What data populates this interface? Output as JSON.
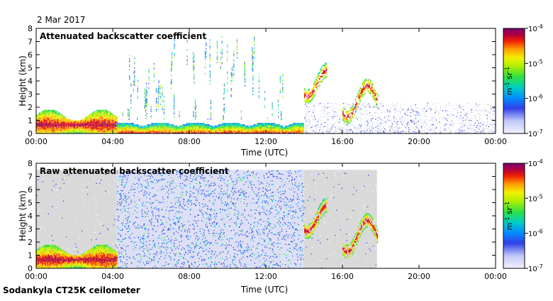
{
  "header": {
    "date": "2 Mar 2017"
  },
  "footer": {
    "instrument": "Sodankyla CT25K ceilometer"
  },
  "colors": {
    "background_noise": "#d9d9d9",
    "colormap": [
      "#f2f2ff",
      "#c0c8f8",
      "#3040e8",
      "#0090ff",
      "#00d0c0",
      "#30e040",
      "#b0f000",
      "#f0f000",
      "#ffa000",
      "#f02000",
      "#b00040",
      "#7a0070"
    ]
  },
  "chart_data": [
    {
      "type": "heatmap",
      "title": "Attenuated backscatter coefficient",
      "xlabel": "Time (UTC)",
      "ylabel": "Height (km)",
      "x_ticks": [
        "00:00",
        "04:00",
        "08:00",
        "12:00",
        "16:00",
        "20:00",
        "00:00"
      ],
      "x_tick_hours": [
        0,
        4,
        8,
        12,
        16,
        20,
        24
      ],
      "xlim": [
        0,
        24
      ],
      "y_ticks": [
        "0",
        "1",
        "2",
        "3",
        "4",
        "5",
        "6",
        "7",
        "8"
      ],
      "ylim": [
        0,
        8
      ],
      "colorbar": {
        "label": "m-1 sr-1",
        "scale": "log",
        "range": [
          1e-07,
          0.0001
        ],
        "tick_labels": [
          "10-7",
          "10-6",
          "10-5",
          "10-4"
        ]
      },
      "features": [
        {
          "kind": "boundary_layer",
          "hours": [
            0,
            4.2
          ],
          "top_km": 1.8,
          "peak_km": 0.6
        },
        {
          "kind": "surface_layer",
          "hours": [
            4.2,
            14
          ],
          "top_km": 0.8
        },
        {
          "kind": "precipitation_streaks",
          "hours": [
            4.5,
            13
          ],
          "height_km": [
            1,
            7.5
          ]
        },
        {
          "kind": "cloud",
          "hours": [
            14,
            15.2
          ],
          "height_km": [
            3,
            5.5
          ]
        },
        {
          "kind": "cloud",
          "hours": [
            16,
            17.8
          ],
          "height_km": [
            1.5,
            4.5
          ]
        },
        {
          "kind": "weak_signal",
          "hours": [
            14,
            24
          ],
          "height_km": [
            0,
            2.3
          ]
        }
      ]
    },
    {
      "type": "heatmap",
      "title": "Raw attenuated backscatter coefficient",
      "xlabel": "Time (UTC)",
      "ylabel": "Height (km)",
      "x_ticks": [
        "00:00",
        "04:00",
        "08:00",
        "12:00",
        "16:00",
        "20:00",
        "00:00"
      ],
      "x_tick_hours": [
        0,
        4,
        8,
        12,
        16,
        20,
        24
      ],
      "xlim": [
        0,
        24
      ],
      "y_ticks": [
        "0",
        "1",
        "2",
        "3",
        "4",
        "5",
        "6",
        "7",
        "8"
      ],
      "ylim": [
        0,
        8
      ],
      "colorbar": {
        "label": "m-1 sr-1",
        "scale": "log",
        "range": [
          1e-07,
          0.0001
        ],
        "tick_labels": [
          "10-7",
          "10-6",
          "10-5",
          "10-4"
        ]
      },
      "features": [
        {
          "kind": "noise_grey",
          "hours": [
            0,
            4.2
          ],
          "height_km": [
            0,
            7.5
          ]
        },
        {
          "kind": "noise_blue",
          "hours": [
            4.2,
            14
          ],
          "height_km": [
            0,
            7.5
          ]
        },
        {
          "kind": "noise_grey",
          "hours": [
            14,
            17.8
          ],
          "height_km": [
            0,
            7.5
          ]
        },
        {
          "kind": "boundary_layer",
          "hours": [
            0,
            4.2
          ],
          "top_km": 1.8,
          "peak_km": 0.6
        },
        {
          "kind": "cloud",
          "hours": [
            14,
            15.2
          ],
          "height_km": [
            3,
            5.5
          ]
        },
        {
          "kind": "cloud",
          "hours": [
            16,
            17.8
          ],
          "height_km": [
            1.5,
            4.5
          ]
        }
      ]
    }
  ]
}
